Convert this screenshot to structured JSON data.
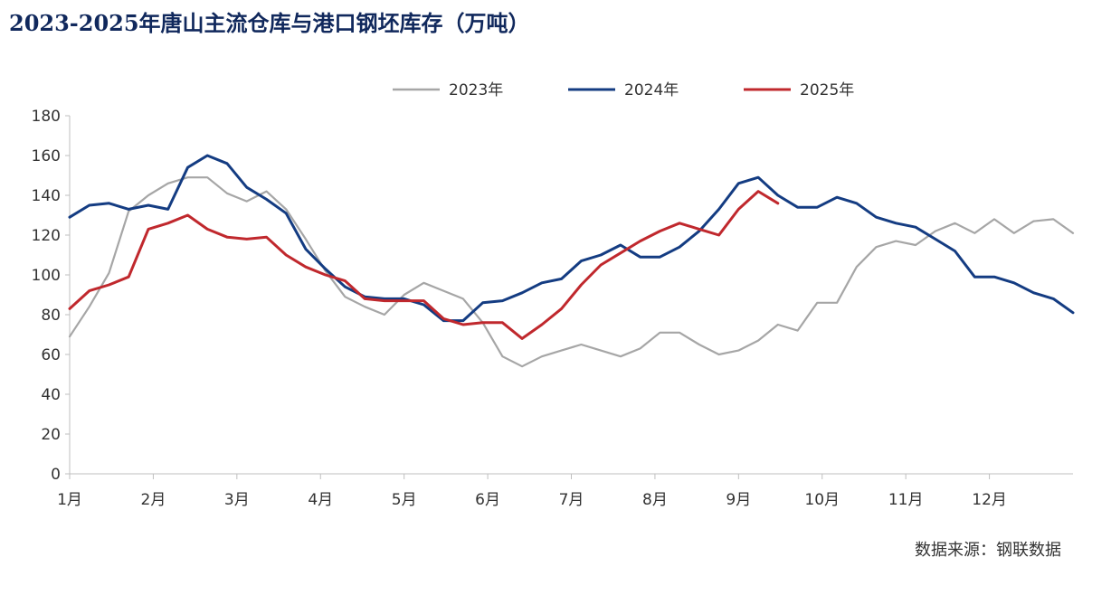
{
  "title": "2023-2025年唐山主流仓库与港口钢坯库存（万吨）",
  "source": "数据来源：钢联数据",
  "chart_data": {
    "type": "line",
    "title": "2023-2025年唐山主流仓库与港口钢坯库存（万吨）",
    "xlabel": "",
    "ylabel": "",
    "ylim": [
      0,
      180
    ],
    "yticks": [
      0,
      20,
      40,
      60,
      80,
      100,
      120,
      140,
      160,
      180
    ],
    "months": [
      "1月",
      "2月",
      "3月",
      "4月",
      "5月",
      "6月",
      "7月",
      "8月",
      "9月",
      "10月",
      "11月",
      "12月"
    ],
    "x_unit": "week of year (1-53)",
    "grid": false,
    "legend_position": "top-center",
    "series": [
      {
        "name": "2023年",
        "color": "#a6a6a6",
        "points": [
          [
            1,
            69
          ],
          [
            2,
            84
          ],
          [
            3,
            101
          ],
          [
            4,
            132
          ],
          [
            5,
            140
          ],
          [
            6,
            146
          ],
          [
            7,
            149
          ],
          [
            8,
            149
          ],
          [
            9,
            141
          ],
          [
            10,
            137
          ],
          [
            11,
            142
          ],
          [
            12,
            133
          ],
          [
            13,
            118
          ],
          [
            14,
            102
          ],
          [
            15,
            89
          ],
          [
            16,
            84
          ],
          [
            17,
            80
          ],
          [
            18,
            90
          ],
          [
            19,
            96
          ],
          [
            20,
            92
          ],
          [
            21,
            88
          ],
          [
            22,
            76
          ],
          [
            23,
            59
          ],
          [
            24,
            54
          ],
          [
            25,
            59
          ],
          [
            26,
            62
          ],
          [
            27,
            65
          ],
          [
            28,
            62
          ],
          [
            29,
            59
          ],
          [
            30,
            63
          ],
          [
            31,
            71
          ],
          [
            32,
            71
          ],
          [
            33,
            65
          ],
          [
            34,
            60
          ],
          [
            35,
            62
          ],
          [
            36,
            67
          ],
          [
            37,
            75
          ],
          [
            38,
            72
          ],
          [
            39,
            86
          ],
          [
            40,
            86
          ],
          [
            41,
            104
          ],
          [
            42,
            114
          ],
          [
            43,
            117
          ],
          [
            44,
            115
          ],
          [
            45,
            122
          ],
          [
            46,
            126
          ],
          [
            47,
            121
          ],
          [
            48,
            128
          ],
          [
            49,
            121
          ],
          [
            50,
            127
          ],
          [
            51,
            128
          ],
          [
            52,
            121
          ]
        ]
      },
      {
        "name": "2024年",
        "color": "#143c82",
        "points": [
          [
            1,
            129
          ],
          [
            2,
            135
          ],
          [
            3,
            136
          ],
          [
            4,
            133
          ],
          [
            5,
            135
          ],
          [
            6,
            133
          ],
          [
            7,
            154
          ],
          [
            8,
            160
          ],
          [
            9,
            156
          ],
          [
            10,
            144
          ],
          [
            11,
            138
          ],
          [
            12,
            131
          ],
          [
            13,
            113
          ],
          [
            14,
            103
          ],
          [
            15,
            94
          ],
          [
            16,
            89
          ],
          [
            17,
            88
          ],
          [
            18,
            88
          ],
          [
            19,
            85
          ],
          [
            20,
            77
          ],
          [
            21,
            77
          ],
          [
            22,
            86
          ],
          [
            23,
            87
          ],
          [
            24,
            91
          ],
          [
            25,
            96
          ],
          [
            26,
            98
          ],
          [
            27,
            107
          ],
          [
            28,
            110
          ],
          [
            29,
            115
          ],
          [
            30,
            109
          ],
          [
            31,
            109
          ],
          [
            32,
            114
          ],
          [
            33,
            122
          ],
          [
            34,
            133
          ],
          [
            35,
            146
          ],
          [
            36,
            149
          ],
          [
            37,
            140
          ],
          [
            38,
            134
          ],
          [
            39,
            134
          ],
          [
            40,
            139
          ],
          [
            41,
            136
          ],
          [
            42,
            129
          ],
          [
            43,
            126
          ],
          [
            44,
            124
          ],
          [
            45,
            118
          ],
          [
            46,
            112
          ],
          [
            47,
            99
          ],
          [
            48,
            99
          ],
          [
            49,
            96
          ],
          [
            50,
            91
          ],
          [
            51,
            88
          ],
          [
            52,
            81
          ]
        ]
      },
      {
        "name": "2025年",
        "color": "#c0282d",
        "points": [
          [
            1,
            83
          ],
          [
            2,
            92
          ],
          [
            3,
            95
          ],
          [
            4,
            99
          ],
          [
            5,
            123
          ],
          [
            6,
            126
          ],
          [
            7,
            130
          ],
          [
            8,
            123
          ],
          [
            9,
            119
          ],
          [
            10,
            118
          ],
          [
            11,
            119
          ],
          [
            12,
            110
          ],
          [
            13,
            104
          ],
          [
            14,
            100
          ],
          [
            15,
            97
          ],
          [
            16,
            88
          ],
          [
            17,
            87
          ],
          [
            18,
            87
          ],
          [
            19,
            87
          ],
          [
            20,
            78
          ],
          [
            21,
            75
          ],
          [
            22,
            76
          ],
          [
            23,
            76
          ],
          [
            24,
            68
          ],
          [
            25,
            75
          ],
          [
            26,
            83
          ],
          [
            27,
            95
          ],
          [
            28,
            105
          ],
          [
            29,
            111
          ],
          [
            30,
            117
          ],
          [
            31,
            122
          ],
          [
            32,
            126
          ],
          [
            33,
            123
          ],
          [
            34,
            120
          ],
          [
            35,
            133
          ],
          [
            36,
            142
          ],
          [
            37,
            136
          ]
        ]
      }
    ]
  }
}
